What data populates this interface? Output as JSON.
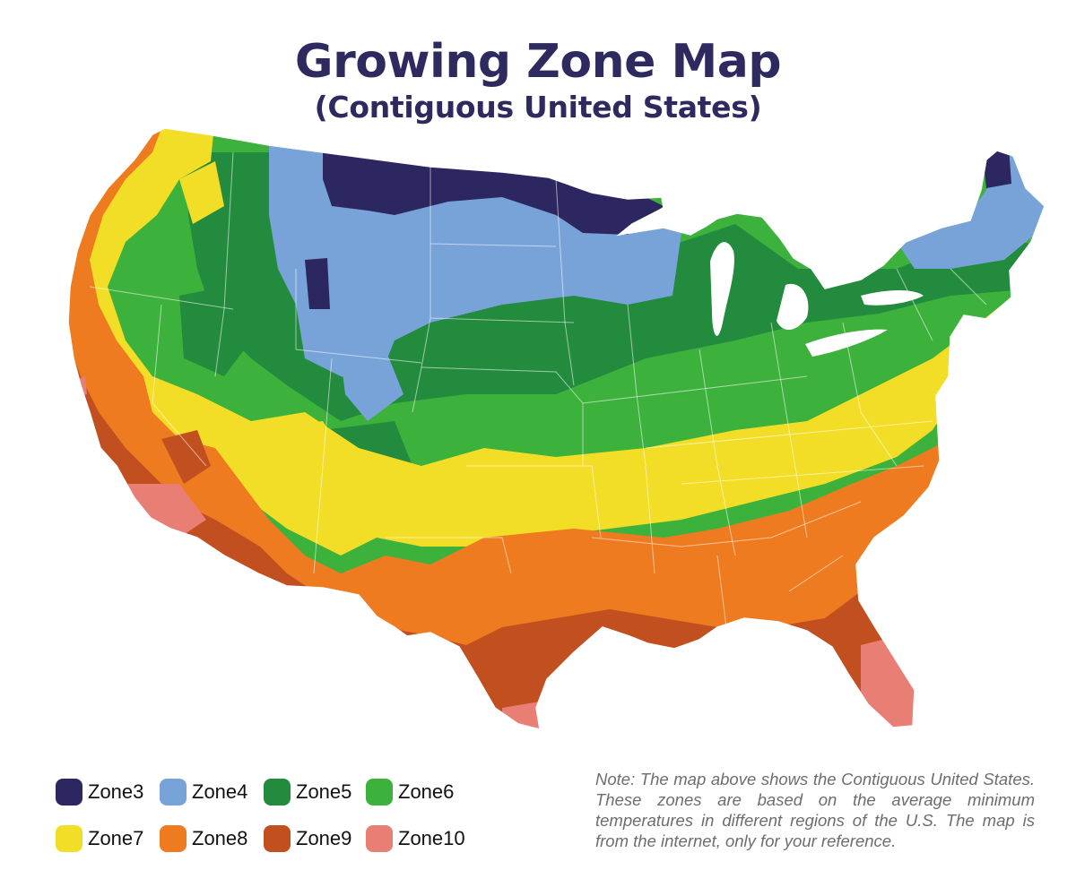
{
  "header": {
    "title": "Growing Zone Map",
    "subtitle": "(Contiguous United States)"
  },
  "legend": {
    "items": [
      {
        "label": "Zone3",
        "color": "#2c2760"
      },
      {
        "label": "Zone4",
        "color": "#78a3d8"
      },
      {
        "label": "Zone5",
        "color": "#238b3d"
      },
      {
        "label": "Zone6",
        "color": "#3cb13c"
      },
      {
        "label": "Zone7",
        "color": "#f2de26"
      },
      {
        "label": "Zone8",
        "color": "#ee7b1f"
      },
      {
        "label": "Zone9",
        "color": "#c14f1f"
      },
      {
        "label": "Zone10",
        "color": "#e87e74"
      }
    ]
  },
  "note": {
    "text": "Note: The map above shows the Contiguous United States. These zones are based on the average minimum temperatures in different regions of the U.S. The map is from the internet, only for your reference."
  }
}
